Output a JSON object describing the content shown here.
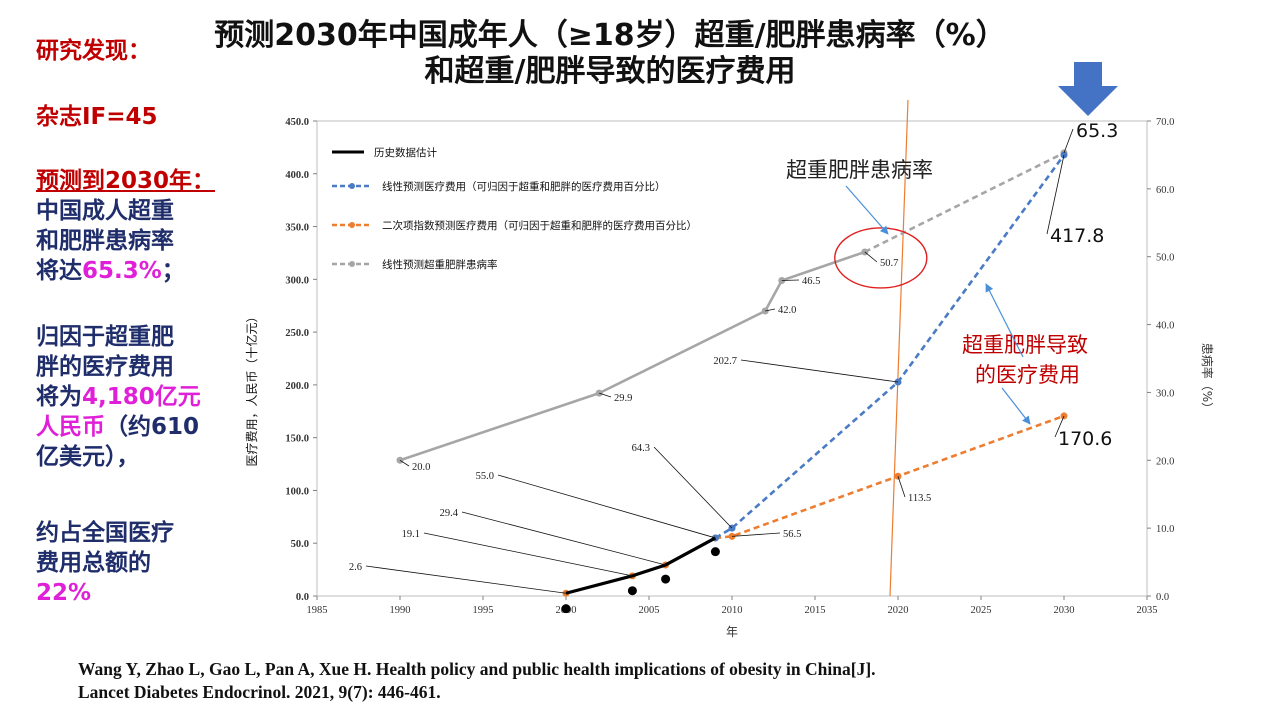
{
  "slide": {
    "title_line1": "预测2030年中国成年人（≥18岁）超重/肥胖患病率（%）",
    "title_line2": "和超重/肥胖导致的医疗费用"
  },
  "sidebar": {
    "heading": "研究发现：",
    "journal_if": "杂志IF=45",
    "forecast_heading": "预测到2030年：",
    "para1_a": "中国成人超重",
    "para1_b": "和肥胖患病率",
    "para1_c_prefix": "将达",
    "para1_c_value": "65.3%",
    "para1_c_suffix": "；",
    "para2_a": "归因于超重肥",
    "para2_b": "胖的医疗费用",
    "para2_c_prefix": "将为",
    "para2_c_value": "4,180亿元",
    "para2_d_value": "人民币",
    "para2_d_suffix": "（约610",
    "para2_e": "亿美元），",
    "para3_a": "约占全国医疗",
    "para3_b": "费用总额的",
    "para3_c_value": "22%"
  },
  "citation": {
    "line1": "Wang Y, Zhao L, Gao L, Pan A, Xue H. Health policy and public  health implications  of obesity in China[J].",
    "line2": "Lancet Diabetes Endocrinol.  2021, 9(7): 446-461."
  },
  "colors": {
    "historical": "#000000",
    "linear_cost": "#4a7bc4",
    "quadratic_cost": "#ed7d31",
    "prevalence": "#a6a6a6",
    "vertical_line": "#ed7d31",
    "ellipse": "#e02020",
    "arrow_fill": "#4472c4",
    "annotation_red": "#c00000"
  },
  "chart_data": {
    "type": "line",
    "xlabel": "年",
    "ylabel": "医疗费用，人民币（十亿元）",
    "y2label": "患病率（%）",
    "xlim": [
      1985,
      2035
    ],
    "xticks": [
      "1985",
      "1990",
      "1995",
      "2000",
      "2005",
      "2010",
      "2015",
      "2020",
      "2025",
      "2030",
      "2035"
    ],
    "ylim": [
      0,
      450
    ],
    "yticks": [
      "0.0",
      "50.0",
      "100.0",
      "150.0",
      "200.0",
      "250.0",
      "300.0",
      "350.0",
      "400.0",
      "450.0"
    ],
    "y2lim": [
      0,
      70
    ],
    "y2ticks": [
      "0.0",
      "10.0",
      "20.0",
      "30.0",
      "40.0",
      "50.0",
      "60.0",
      "70.0"
    ],
    "grid": false,
    "legend_position": "top-left",
    "vertical_line_x": 2020,
    "series": [
      {
        "name": "历史数据估计",
        "axis": "left",
        "style": "solid",
        "color": "#000000",
        "x": [
          2000,
          2004,
          2006,
          2009
        ],
        "y": [
          2.6,
          19.1,
          29.4,
          55.0
        ]
      },
      {
        "name": "线性预测医疗费用（可归因于超重和肥胖的医疗费用百分比）",
        "axis": "left",
        "style": "dashed",
        "color": "#4a7bc4",
        "x": [
          2009,
          2010,
          2020,
          2030
        ],
        "y": [
          55.0,
          64.3,
          202.7,
          417.8
        ]
      },
      {
        "name": "二次项指数预测医疗费用（可归因于超重和肥胖的医疗费用百分比）",
        "axis": "left",
        "style": "dashed",
        "color": "#ed7d31",
        "x": [
          2000,
          2004,
          2006,
          2009,
          2010,
          2020,
          2030
        ],
        "y": [
          2.6,
          19.1,
          29.4,
          55.0,
          56.5,
          113.5,
          170.6
        ]
      },
      {
        "name": "线性预测超重肥胖患病率",
        "axis": "right",
        "style": "mixed",
        "color": "#a6a6a6",
        "x": [
          1990,
          2002,
          2012,
          2013,
          2018,
          2030
        ],
        "y": [
          20.0,
          29.9,
          42.0,
          46.5,
          50.7,
          65.3
        ]
      }
    ],
    "black_dots": [
      {
        "x": 2000,
        "y": -12
      },
      {
        "x": 2004,
        "y": 5
      },
      {
        "x": 2006,
        "y": 16
      },
      {
        "x": 2009,
        "y": 42
      }
    ],
    "point_labels": [
      {
        "text": "2.6",
        "axis": "left",
        "x": 2000,
        "y": 2.6
      },
      {
        "text": "19.1",
        "axis": "left",
        "x": 2004,
        "y": 19.1
      },
      {
        "text": "29.4",
        "axis": "left",
        "x": 2006,
        "y": 29.4
      },
      {
        "text": "55.0",
        "axis": "left",
        "x": 2009,
        "y": 55.0
      },
      {
        "text": "64.3",
        "axis": "left",
        "x": 2010,
        "y": 64.3
      },
      {
        "text": "56.5",
        "axis": "left",
        "x": 2010,
        "y": 56.5
      },
      {
        "text": "202.7",
        "axis": "left",
        "x": 2020,
        "y": 202.7
      },
      {
        "text": "113.5",
        "axis": "left",
        "x": 2020,
        "y": 113.5
      },
      {
        "text": "20.0",
        "axis": "right",
        "x": 1990,
        "y": 20.0
      },
      {
        "text": "29.9",
        "axis": "right",
        "x": 2002,
        "y": 29.9
      },
      {
        "text": "42.0",
        "axis": "right",
        "x": 2012,
        "y": 42.0
      },
      {
        "text": "46.5",
        "axis": "right",
        "x": 2013,
        "y": 46.5
      },
      {
        "text": "50.7",
        "axis": "right",
        "x": 2018,
        "y": 50.7
      },
      {
        "text": "65.3",
        "axis": "right",
        "x": 2030,
        "y": 65.3
      },
      {
        "text": "417.8",
        "axis": "left",
        "x": 2030,
        "y": 417.8
      },
      {
        "text": "170.6",
        "axis": "left",
        "x": 2030,
        "y": 170.6
      }
    ],
    "annotations": [
      {
        "text": "超重肥胖患病率"
      },
      {
        "text": "超重肥胖导致"
      },
      {
        "text": "的医疗费用"
      }
    ]
  }
}
